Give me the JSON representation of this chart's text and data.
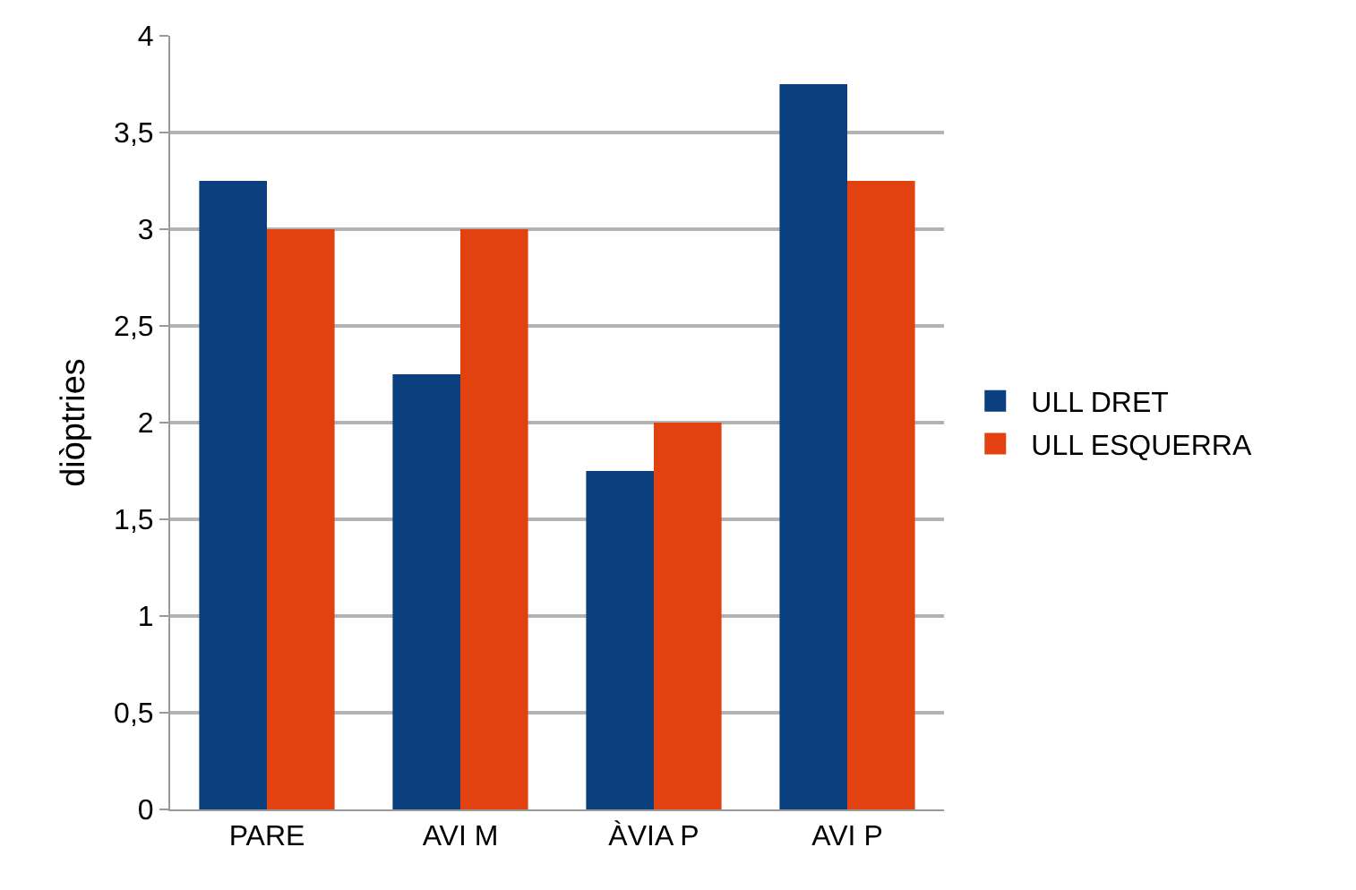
{
  "chart_data": {
    "type": "bar",
    "ylabel": "diòptries",
    "categories": [
      "PARE",
      "AVI M",
      "ÀVIA P",
      "AVI P"
    ],
    "series": [
      {
        "name": "ULL DRET",
        "color": "#0b3f7e",
        "values": [
          3.25,
          2.25,
          1.75,
          3.75
        ]
      },
      {
        "name": "ULL ESQUERRA",
        "color": "#e2420f",
        "values": [
          3,
          3,
          2,
          3.25
        ]
      }
    ],
    "ylim": [
      0,
      4
    ],
    "yticks": [
      0,
      {
        "value": 0.5,
        "label": "0,5"
      },
      1,
      {
        "value": 1.5,
        "label": "1,5"
      },
      2,
      {
        "value": 2.5,
        "label": "2,5"
      },
      3,
      {
        "value": 3.5,
        "label": "3,5"
      },
      4
    ],
    "grid": "y",
    "legend": "right"
  }
}
